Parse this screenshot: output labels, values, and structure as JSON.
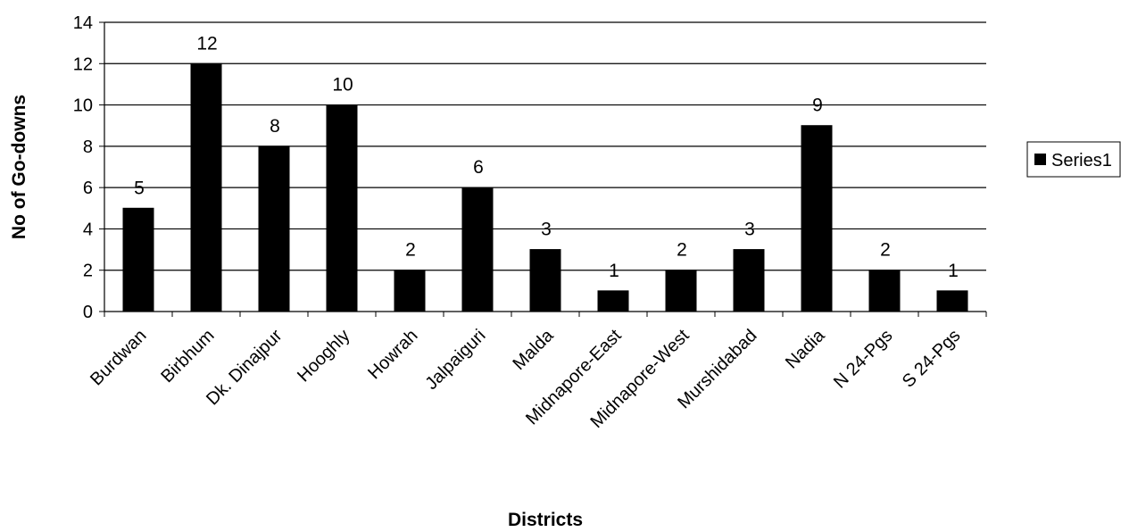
{
  "chart_data": {
    "type": "bar",
    "categories": [
      "Burdwan",
      "Birbhum",
      "Dk. Dinajpur",
      "Hooghly",
      "Howrah",
      "Jalpaiguri",
      "Malda",
      "Midnapore-East",
      "Midnapore-West",
      "Murshidabad",
      "Nadia",
      "N 24-Pgs",
      "S 24-Pgs"
    ],
    "series": [
      {
        "name": "Series1",
        "values": [
          5,
          12,
          8,
          10,
          2,
          6,
          3,
          1,
          2,
          3,
          9,
          2,
          1
        ],
        "color": "#000000"
      }
    ],
    "xlabel": "Districts",
    "ylabel": "No of Go-downs",
    "ylim": [
      0,
      14
    ],
    "yticks": [
      0,
      2,
      4,
      6,
      8,
      10,
      12,
      14
    ],
    "grid": true,
    "legend_position": "right",
    "data_labels": true
  }
}
